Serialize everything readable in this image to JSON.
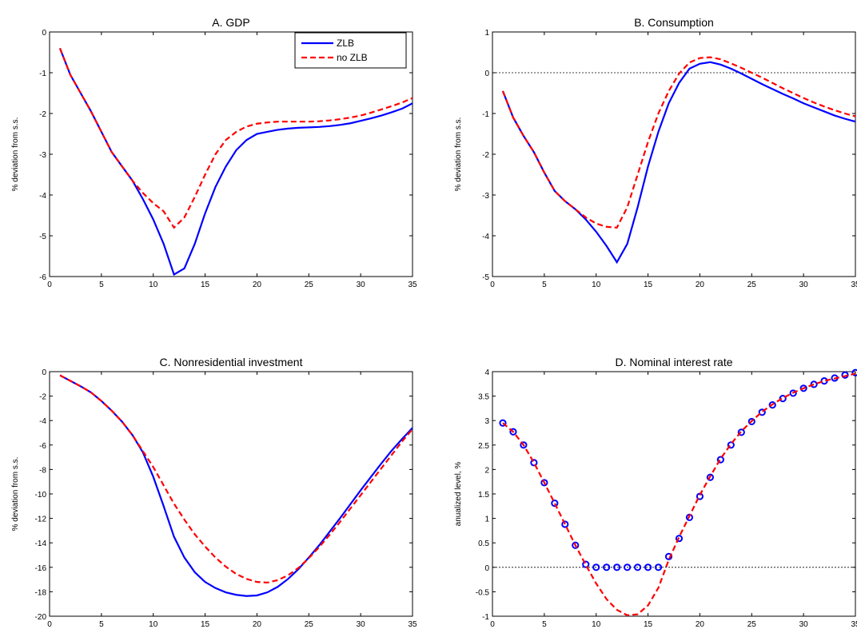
{
  "figure": {
    "series_styles": {
      "zlb": {
        "color": "#0000ff",
        "style": "solid"
      },
      "nozlb": {
        "color": "#ff0000",
        "style": "dashed"
      }
    },
    "legend": {
      "panel": 0,
      "position": "top-right"
    }
  },
  "chart_data": [
    {
      "type": "line",
      "title": "A. GDP",
      "xlabel": "",
      "ylabel": "% deviation from s.s.",
      "xlim": [
        0,
        35
      ],
      "ylim": [
        -6,
        0
      ],
      "xticks": [
        0,
        5,
        10,
        15,
        20,
        25,
        30,
        35
      ],
      "yticks": [
        -6,
        -5,
        -4,
        -3,
        -2,
        -1,
        0
      ],
      "x": [
        1,
        2,
        3,
        4,
        5,
        6,
        7,
        8,
        9,
        10,
        11,
        12,
        13,
        14,
        15,
        16,
        17,
        18,
        19,
        20,
        21,
        22,
        23,
        24,
        25,
        26,
        27,
        28,
        29,
        30,
        31,
        32,
        33,
        34,
        35
      ],
      "series": [
        {
          "name": "ZLB",
          "values": [
            -0.4,
            -1.05,
            -1.5,
            -1.95,
            -2.45,
            -2.95,
            -3.3,
            -3.65,
            -4.1,
            -4.6,
            -5.2,
            -5.95,
            -5.8,
            -5.2,
            -4.45,
            -3.8,
            -3.3,
            -2.9,
            -2.65,
            -2.5,
            -2.45,
            -2.4,
            -2.37,
            -2.35,
            -2.34,
            -2.33,
            -2.31,
            -2.28,
            -2.24,
            -2.18,
            -2.12,
            -2.05,
            -1.97,
            -1.88,
            -1.75
          ]
        },
        {
          "name": "no ZLB",
          "values": [
            -0.4,
            -1.05,
            -1.5,
            -1.95,
            -2.45,
            -2.95,
            -3.3,
            -3.65,
            -3.95,
            -4.2,
            -4.4,
            -4.8,
            -4.55,
            -4.05,
            -3.5,
            -3.0,
            -2.65,
            -2.45,
            -2.32,
            -2.25,
            -2.22,
            -2.2,
            -2.2,
            -2.2,
            -2.2,
            -2.19,
            -2.17,
            -2.14,
            -2.1,
            -2.05,
            -1.98,
            -1.9,
            -1.82,
            -1.73,
            -1.62
          ]
        }
      ]
    },
    {
      "type": "line",
      "title": "B. Consumption",
      "xlabel": "",
      "ylabel": "% deviation from s.s.",
      "xlim": [
        0,
        35
      ],
      "ylim": [
        -5,
        1
      ],
      "xticks": [
        0,
        5,
        10,
        15,
        20,
        25,
        30,
        35
      ],
      "yticks": [
        -5,
        -4,
        -3,
        -2,
        -1,
        0,
        1
      ],
      "zero_line": true,
      "x": [
        1,
        2,
        3,
        4,
        5,
        6,
        7,
        8,
        9,
        10,
        11,
        12,
        13,
        14,
        15,
        16,
        17,
        18,
        19,
        20,
        21,
        22,
        23,
        24,
        25,
        26,
        27,
        28,
        29,
        30,
        31,
        32,
        33,
        34,
        35
      ],
      "series": [
        {
          "name": "ZLB",
          "values": [
            -0.45,
            -1.1,
            -1.55,
            -1.95,
            -2.45,
            -2.9,
            -3.15,
            -3.35,
            -3.6,
            -3.9,
            -4.25,
            -4.65,
            -4.2,
            -3.3,
            -2.3,
            -1.45,
            -0.75,
            -0.25,
            0.1,
            0.22,
            0.26,
            0.2,
            0.1,
            -0.02,
            -0.15,
            -0.28,
            -0.4,
            -0.52,
            -0.63,
            -0.75,
            -0.85,
            -0.95,
            -1.05,
            -1.13,
            -1.2
          ]
        },
        {
          "name": "no ZLB",
          "values": [
            -0.45,
            -1.1,
            -1.55,
            -1.95,
            -2.45,
            -2.9,
            -3.15,
            -3.35,
            -3.55,
            -3.7,
            -3.78,
            -3.8,
            -3.3,
            -2.5,
            -1.7,
            -1.0,
            -0.45,
            -0.02,
            0.25,
            0.36,
            0.38,
            0.33,
            0.23,
            0.12,
            0.0,
            -0.12,
            -0.25,
            -0.38,
            -0.5,
            -0.62,
            -0.73,
            -0.83,
            -0.92,
            -1.0,
            -1.07
          ]
        }
      ]
    },
    {
      "type": "line",
      "title": "C. Nonresidential investment",
      "xlabel": "",
      "ylabel": "% deviation from s.s.",
      "xlim": [
        0,
        35
      ],
      "ylim": [
        -20,
        0
      ],
      "xticks": [
        0,
        5,
        10,
        15,
        20,
        25,
        30,
        35
      ],
      "yticks": [
        -20,
        -18,
        -16,
        -14,
        -12,
        -10,
        -8,
        -6,
        -4,
        -2,
        0
      ],
      "x": [
        1,
        2,
        3,
        4,
        5,
        6,
        7,
        8,
        9,
        10,
        11,
        12,
        13,
        14,
        15,
        16,
        17,
        18,
        19,
        20,
        21,
        22,
        23,
        24,
        25,
        26,
        27,
        28,
        29,
        30,
        31,
        32,
        33,
        34,
        35
      ],
      "series": [
        {
          "name": "ZLB",
          "values": [
            -0.3,
            -0.75,
            -1.2,
            -1.7,
            -2.4,
            -3.2,
            -4.1,
            -5.2,
            -6.6,
            -8.6,
            -11.0,
            -13.5,
            -15.2,
            -16.4,
            -17.2,
            -17.7,
            -18.05,
            -18.25,
            -18.35,
            -18.3,
            -18.05,
            -17.6,
            -16.95,
            -16.15,
            -15.2,
            -14.2,
            -13.1,
            -12.0,
            -10.85,
            -9.7,
            -8.6,
            -7.5,
            -6.45,
            -5.5,
            -4.6
          ]
        },
        {
          "name": "no ZLB",
          "values": [
            -0.3,
            -0.75,
            -1.2,
            -1.7,
            -2.4,
            -3.2,
            -4.1,
            -5.2,
            -6.5,
            -7.8,
            -9.3,
            -10.8,
            -12.1,
            -13.3,
            -14.3,
            -15.2,
            -15.95,
            -16.55,
            -16.95,
            -17.2,
            -17.25,
            -17.05,
            -16.65,
            -16.05,
            -15.25,
            -14.35,
            -13.35,
            -12.3,
            -11.2,
            -10.1,
            -9.0,
            -7.9,
            -6.8,
            -5.7,
            -4.7
          ]
        }
      ]
    },
    {
      "type": "line",
      "title": "D. Nominal interest rate",
      "xlabel": "",
      "ylabel": "anualized level, %",
      "xlim": [
        0,
        35
      ],
      "ylim": [
        -1,
        4
      ],
      "xticks": [
        0,
        5,
        10,
        15,
        20,
        25,
        30,
        35
      ],
      "yticks": [
        -1,
        -0.5,
        0,
        0.5,
        1,
        1.5,
        2,
        2.5,
        3,
        3.5,
        4
      ],
      "zero_line": true,
      "x": [
        1,
        2,
        3,
        4,
        5,
        6,
        7,
        8,
        9,
        10,
        11,
        12,
        13,
        14,
        15,
        16,
        17,
        18,
        19,
        20,
        21,
        22,
        23,
        24,
        25,
        26,
        27,
        28,
        29,
        30,
        31,
        32,
        33,
        34,
        35
      ],
      "series": [
        {
          "name": "ZLB",
          "marker": "circle",
          "values": [
            2.95,
            2.77,
            2.5,
            2.14,
            1.73,
            1.31,
            0.88,
            0.45,
            0.06,
            0.0,
            0.0,
            0.0,
            0.0,
            0.0,
            0.0,
            0.0,
            0.22,
            0.59,
            1.02,
            1.45,
            1.84,
            2.2,
            2.5,
            2.76,
            2.98,
            3.17,
            3.32,
            3.45,
            3.56,
            3.66,
            3.74,
            3.81,
            3.87,
            3.93,
            3.98
          ]
        },
        {
          "name": "no ZLB",
          "values": [
            2.95,
            2.77,
            2.5,
            2.14,
            1.73,
            1.31,
            0.88,
            0.45,
            0.05,
            -0.33,
            -0.65,
            -0.87,
            -0.98,
            -0.96,
            -0.78,
            -0.42,
            0.15,
            0.62,
            1.05,
            1.48,
            1.86,
            2.22,
            2.52,
            2.78,
            2.99,
            3.18,
            3.33,
            3.46,
            3.57,
            3.66,
            3.74,
            3.81,
            3.86,
            3.91,
            3.96
          ]
        }
      ]
    }
  ]
}
